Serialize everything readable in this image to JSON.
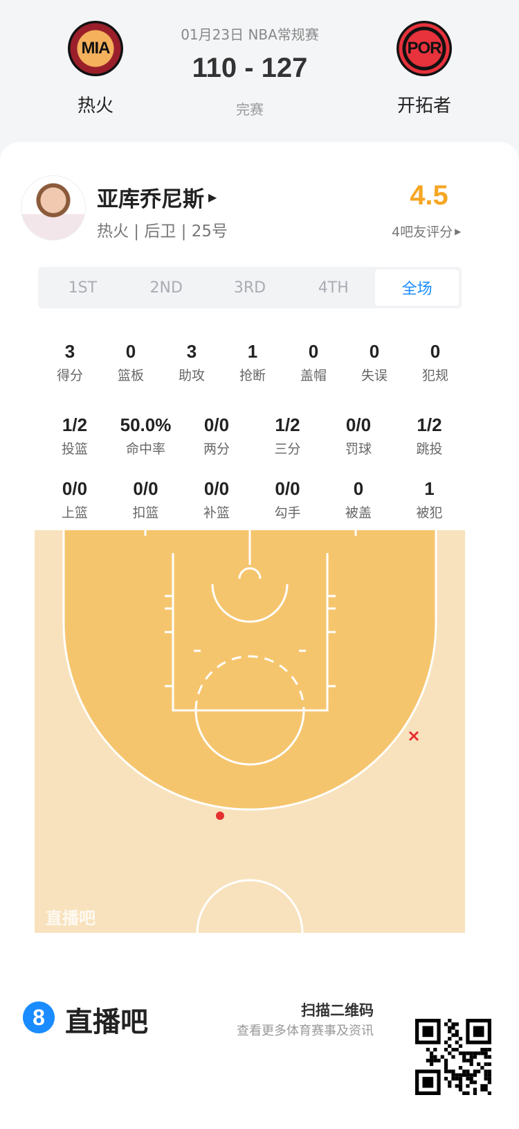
{
  "game": {
    "date_league": "01月23日 NBA常规赛",
    "score": "110 - 127",
    "status": "完赛",
    "home": {
      "abbr": "MIA",
      "name": "热火"
    },
    "away": {
      "abbr": "POR",
      "name": "开拓者"
    }
  },
  "player": {
    "name": "亚库乔尼斯",
    "info": "热火 | 后卫 | 25号",
    "rating": "4.5",
    "rating_label": "4吧友评分"
  },
  "tabs": [
    {
      "label": "1ST"
    },
    {
      "label": "2ND"
    },
    {
      "label": "3RD"
    },
    {
      "label": "4TH"
    },
    {
      "label": "全场",
      "active": true
    }
  ],
  "stats_row1": [
    {
      "v": "3",
      "l": "得分"
    },
    {
      "v": "0",
      "l": "篮板"
    },
    {
      "v": "3",
      "l": "助攻"
    },
    {
      "v": "1",
      "l": "抢断"
    },
    {
      "v": "0",
      "l": "盖帽"
    },
    {
      "v": "0",
      "l": "失误"
    },
    {
      "v": "0",
      "l": "犯规"
    }
  ],
  "stats_row2": [
    {
      "v": "1/2",
      "l": "投篮"
    },
    {
      "v": "50.0%",
      "l": "命中率"
    },
    {
      "v": "0/0",
      "l": "两分"
    },
    {
      "v": "1/2",
      "l": "三分"
    },
    {
      "v": "0/0",
      "l": "罚球"
    },
    {
      "v": "1/2",
      "l": "跳投"
    }
  ],
  "stats_row3": [
    {
      "v": "0/0",
      "l": "上篮"
    },
    {
      "v": "0/0",
      "l": "扣篮"
    },
    {
      "v": "0/0",
      "l": "补篮"
    },
    {
      "v": "0/0",
      "l": "勾手"
    },
    {
      "v": "0",
      "l": "被盖"
    },
    {
      "v": "1",
      "l": "被犯"
    }
  ],
  "shots": [
    {
      "result": "made",
      "color": "#e53030"
    },
    {
      "result": "missed",
      "color": "#e53030"
    }
  ],
  "court_watermark": "直播吧",
  "footer": {
    "brand": "直播吧",
    "brand_mark": "8",
    "scan": "扫描二维码",
    "sub": "查看更多体育赛事及资讯"
  },
  "colors": {
    "accent": "#1a8cff",
    "rating": "#f5a623",
    "court_inner": "#f5c56e",
    "court_outer": "#f8e2bd"
  }
}
